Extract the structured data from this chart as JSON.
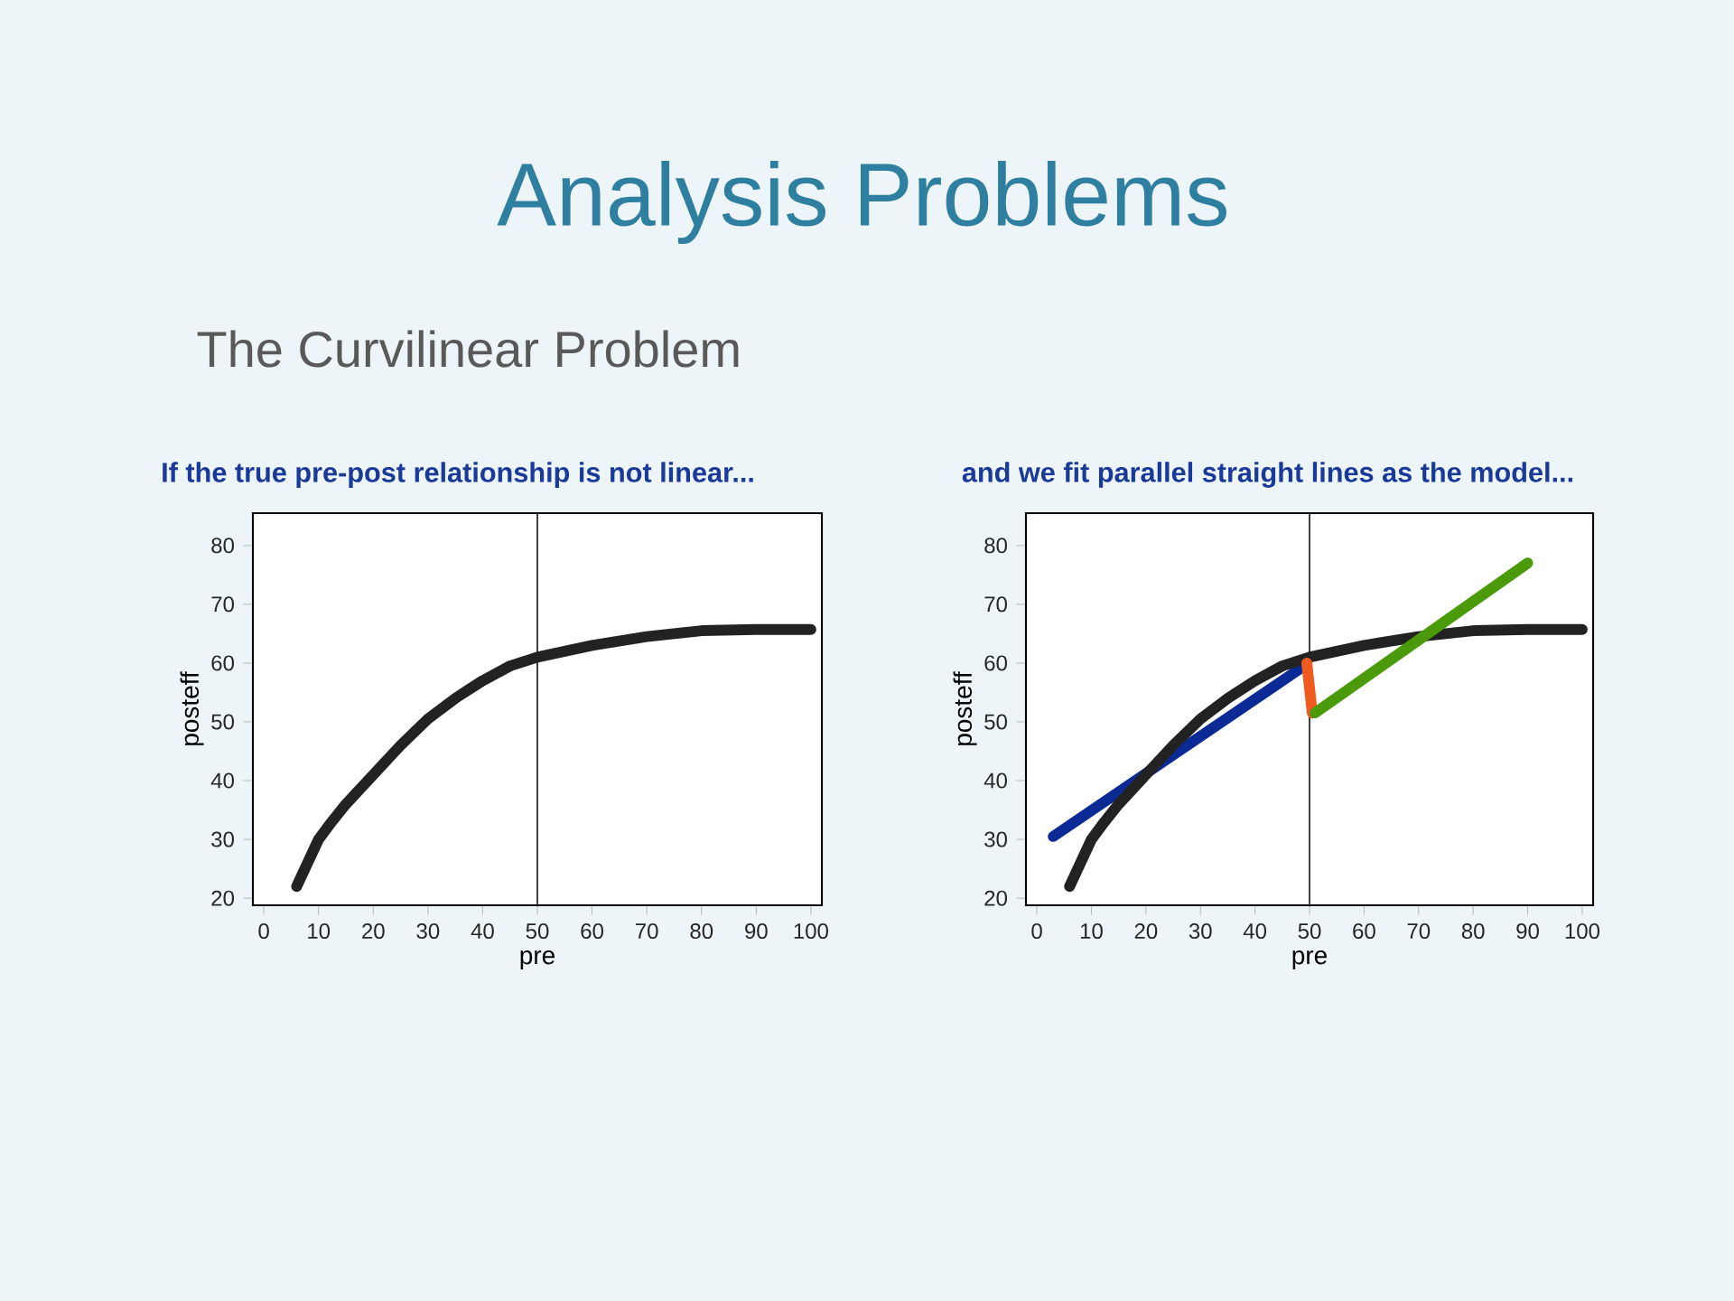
{
  "chart_data": [
    {
      "type": "line",
      "title": "If the true pre-post relationship is not linear...",
      "xlabel": "pre",
      "ylabel": "posteff",
      "annotations": [
        "Analysis Problems",
        "The Curvilinear Problem"
      ],
      "xlim": [
        -2,
        102
      ],
      "ylim": [
        18.8,
        85.5
      ],
      "xticks": [
        0,
        10,
        20,
        30,
        40,
        50,
        60,
        70,
        80,
        90,
        100
      ],
      "yticks": [
        20,
        30,
        40,
        50,
        60,
        70,
        80
      ],
      "ref_lines": [
        {
          "axis": "x",
          "value": 50,
          "color": "#333333"
        }
      ],
      "series": [
        {
          "color": "#222222",
          "x": [
            6,
            8,
            10,
            12,
            15,
            20,
            25,
            30,
            35,
            40,
            45,
            50,
            55,
            60,
            70,
            80,
            90,
            100
          ],
          "values": [
            22,
            26,
            30,
            32.5,
            36,
            41,
            46,
            50.5,
            54,
            57,
            59.5,
            61,
            62,
            63,
            64.5,
            65.5,
            65.7,
            65.7
          ]
        }
      ]
    },
    {
      "type": "line",
      "title": "and we fit parallel straight lines as the model...",
      "xlabel": "pre",
      "ylabel": "posteff",
      "xlim": [
        -2,
        102
      ],
      "ylim": [
        18.8,
        85.5
      ],
      "xticks": [
        0,
        10,
        20,
        30,
        40,
        50,
        60,
        70,
        80,
        90,
        100
      ],
      "yticks": [
        20,
        30,
        40,
        50,
        60,
        70,
        80
      ],
      "ref_lines": [
        {
          "axis": "x",
          "value": 50,
          "color": "#333333"
        }
      ],
      "series": [
        {
          "color": "#0b2a96",
          "x": [
            3,
            49
          ],
          "values": [
            30.5,
            59.5
          ]
        },
        {
          "color": "#222222",
          "x": [
            6,
            8,
            10,
            12,
            15,
            20,
            25,
            30,
            35,
            40,
            45,
            50,
            55,
            60,
            70,
            80,
            90,
            100
          ],
          "values": [
            22,
            26,
            30,
            32.5,
            36,
            41,
            46,
            50.5,
            54,
            57,
            59.5,
            61,
            62,
            63,
            64.5,
            65.5,
            65.7,
            65.7
          ]
        },
        {
          "color": "#f05a1e",
          "x": [
            49.5,
            50.5
          ],
          "values": [
            60,
            51.5
          ]
        },
        {
          "color": "#4a9a0a",
          "x": [
            51,
            90
          ],
          "values": [
            51.5,
            77
          ]
        }
      ]
    }
  ]
}
